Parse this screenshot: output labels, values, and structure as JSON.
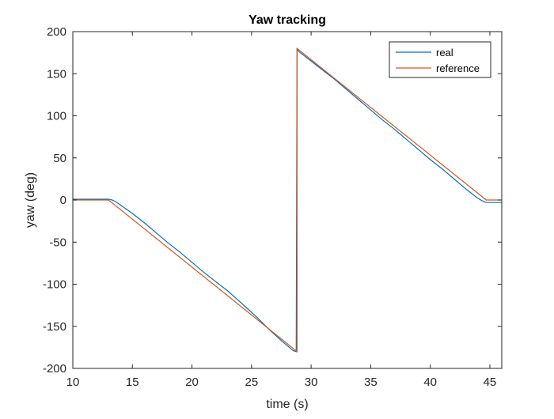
{
  "chart_data": {
    "type": "line",
    "title": "Yaw tracking",
    "xlabel": "time (s)",
    "ylabel": "yaw (deg)",
    "xlim": [
      10,
      46
    ],
    "ylim": [
      -200,
      200
    ],
    "xticks": [
      10,
      15,
      20,
      25,
      30,
      35,
      40,
      45
    ],
    "yticks": [
      -200,
      -150,
      -100,
      -50,
      0,
      50,
      100,
      150,
      200
    ],
    "grid": false,
    "legend_position": "top-right",
    "series": [
      {
        "name": "real",
        "color": "#0072BD",
        "x": [
          10,
          11,
          12,
          13,
          13.3,
          13.6,
          14,
          15,
          16,
          17,
          18,
          19,
          20,
          21,
          22,
          23,
          23.8,
          24.5,
          25.5,
          26.5,
          27.5,
          28.5,
          28.75,
          28.82,
          29.0,
          30,
          31,
          32,
          33,
          34,
          35,
          36,
          37,
          38,
          39,
          40,
          41,
          42,
          43,
          44,
          44.5,
          44.75,
          45,
          46
        ],
        "y": [
          1,
          1,
          1,
          1,
          0,
          -2,
          -6,
          -16,
          -27,
          -39,
          -51,
          -62,
          -74,
          -86,
          -97,
          -108,
          -118,
          -127,
          -140,
          -154,
          -167,
          -179,
          -180,
          179,
          176,
          165,
          154,
          143,
          131,
          119,
          107,
          95,
          84,
          72,
          60,
          48,
          37,
          25,
          13,
          2,
          -2,
          -3,
          -3,
          -3
        ]
      },
      {
        "name": "reference",
        "color": "#D95319",
        "x": [
          10,
          13.0,
          28.82,
          28.82,
          44.7,
          46
        ],
        "y": [
          0,
          0,
          -180,
          180,
          0,
          0
        ]
      }
    ]
  }
}
